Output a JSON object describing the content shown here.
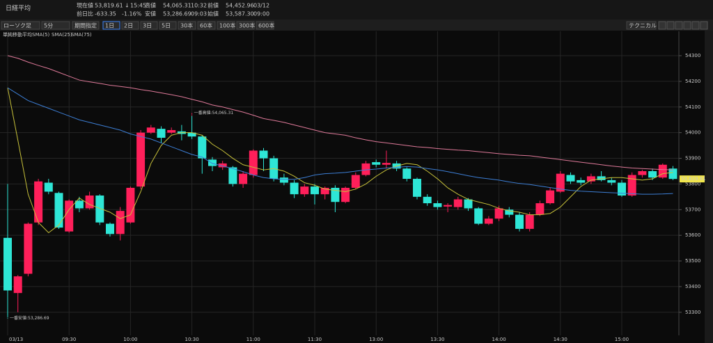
{
  "header": {
    "title": "日経平均",
    "quotes": [
      {
        "label": "現在値",
        "value": "53,819.61",
        "arrow": "↓",
        "time": "15:45"
      },
      {
        "label": "前日比",
        "value": "-633.35",
        "pct": "-1.16%"
      },
      {
        "label": "高値",
        "value": "54,065.31",
        "time": "10:32"
      },
      {
        "label": "安値",
        "value": "53,286.69",
        "time": "09:03"
      },
      {
        "label": "前値",
        "value": "54,452.96",
        "time": "03/12"
      },
      {
        "label": "始値",
        "value": "53,587.30",
        "time": "09:00"
      }
    ]
  },
  "toolbar": {
    "chart_style": "ローソク足",
    "interval": "5分",
    "range": "期間指定",
    "periods": [
      "1日",
      "2日",
      "3日",
      "5日",
      "30本",
      "60本",
      "100本",
      "300本",
      "600本"
    ],
    "technical": "テクニカル"
  },
  "chart_data": {
    "type": "candlestick",
    "legend_title": "単純移動平均",
    "up_color": "#ff1f5a",
    "down_color": "#2ee6d6",
    "categories": [
      "03/13",
      null,
      null,
      null,
      null,
      null,
      "09:30",
      null,
      null,
      null,
      null,
      null,
      "10:00",
      null,
      null,
      null,
      null,
      null,
      "10:30",
      null,
      null,
      null,
      null,
      null,
      "11:00",
      null,
      null,
      null,
      null,
      null,
      "11:30",
      null,
      null,
      null,
      null,
      null,
      "13:00",
      null,
      null,
      null,
      null,
      null,
      "13:30",
      null,
      null,
      null,
      null,
      null,
      "14:00",
      null,
      null,
      null,
      null,
      null,
      "14:30",
      null,
      null,
      null,
      null,
      null,
      "15:00",
      null,
      null,
      null,
      null,
      null
    ],
    "open": [
      53590,
      53375,
      53450,
      53650,
      53805,
      53765,
      53615,
      53735,
      53705,
      53755,
      53645,
      53605,
      53650,
      53790,
      54000,
      54015,
      54000,
      54005,
      54000,
      53985,
      53895,
      53865,
      53865,
      53800,
      53835,
      53930,
      53900,
      53825,
      53805,
      53760,
      53790,
      53760,
      53785,
      53730,
      53785,
      53835,
      53885,
      53875,
      53880,
      53860,
      53820,
      53750,
      53725,
      53712,
      53710,
      53740,
      53705,
      53645,
      53665,
      53700,
      53680,
      53625,
      53680,
      53725,
      53770,
      53835,
      53815,
      53810,
      53830,
      53815,
      53805,
      53755,
      53835,
      53850,
      53825,
      53860
    ],
    "high": [
      53800,
      53445,
      53650,
      53820,
      53820,
      53770,
      53740,
      53750,
      53770,
      53760,
      53650,
      53710,
      53790,
      54010,
      54030,
      54025,
      54020,
      54030,
      54065.31,
      53990,
      53905,
      53890,
      53870,
      53850,
      53935,
      53940,
      53910,
      53840,
      53815,
      53800,
      53800,
      53790,
      53795,
      53790,
      53845,
      53890,
      53895,
      53930,
      53890,
      53865,
      53825,
      53760,
      53735,
      53725,
      53750,
      53745,
      53710,
      53675,
      53715,
      53710,
      53690,
      53690,
      53735,
      53785,
      53850,
      53845,
      53825,
      53840,
      53850,
      53825,
      53815,
      53845,
      53855,
      53860,
      53880,
      53870
    ],
    "low": [
      53286.69,
      53300,
      53440,
      53640,
      53760,
      53625,
      53610,
      53690,
      53700,
      53640,
      53595,
      53580,
      53645,
      53780,
      53995,
      53960,
      53995,
      53970,
      53975,
      53840,
      53850,
      53855,
      53790,
      53785,
      53825,
      53850,
      53810,
      53795,
      53745,
      53750,
      53720,
      53740,
      53690,
      53725,
      53780,
      53830,
      53865,
      53860,
      53850,
      53810,
      53740,
      53715,
      53700,
      53690,
      53700,
      53695,
      53640,
      53640,
      53655,
      53670,
      53615,
      53615,
      53675,
      53720,
      53765,
      53800,
      53795,
      53800,
      53810,
      53795,
      53750,
      53750,
      53825,
      53815,
      53820,
      53815
    ],
    "close": [
      53385,
      53440,
      53645,
      53810,
      53770,
      53630,
      53735,
      53705,
      53755,
      53650,
      53605,
      53695,
      53785,
      54000,
      54020,
      53980,
      54010,
      53995,
      53985,
      53900,
      53870,
      53880,
      53800,
      53840,
      53930,
      53900,
      53820,
      53805,
      53760,
      53790,
      53760,
      53785,
      53730,
      53785,
      53835,
      53880,
      53875,
      53882,
      53860,
      53820,
      53750,
      53725,
      53710,
      53718,
      53740,
      53705,
      53645,
      53665,
      53705,
      53680,
      53625,
      53680,
      53725,
      53775,
      53840,
      53810,
      53805,
      53830,
      53815,
      53805,
      53755,
      53835,
      53850,
      53825,
      53875,
      53819.61
    ],
    "series": [
      {
        "name": "SMA(5)",
        "color": "#c8c23a",
        "values": [
          54175,
          53970,
          53760,
          53650,
          53610,
          53640,
          53700,
          53745,
          53720,
          53705,
          53690,
          53665,
          53680,
          53770,
          53880,
          53950,
          53990,
          54000,
          54000,
          53990,
          53955,
          53930,
          53900,
          53875,
          53865,
          53855,
          53860,
          53850,
          53830,
          53805,
          53795,
          53780,
          53775,
          53770,
          53780,
          53800,
          53830,
          53855,
          53870,
          53880,
          53875,
          53850,
          53820,
          53785,
          53760,
          53740,
          53730,
          53720,
          53705,
          53695,
          53690,
          53680,
          53680,
          53685,
          53710,
          53750,
          53790,
          53815,
          53820,
          53825,
          53825,
          53820,
          53815,
          53820,
          53840,
          53845
        ]
      },
      {
        "name": "SMA(25)",
        "color": "#3d7fd6",
        "values": [
          54175,
          54150,
          54125,
          54110,
          54095,
          54080,
          54065,
          54050,
          54040,
          54030,
          54020,
          54010,
          53995,
          53985,
          53975,
          53960,
          53945,
          53930,
          53915,
          53905,
          53880,
          53870,
          53860,
          53848,
          53835,
          53825,
          53820,
          53818,
          53818,
          53825,
          53835,
          53840,
          53842,
          53845,
          53850,
          53855,
          53858,
          53862,
          53865,
          53868,
          53866,
          53860,
          53855,
          53848,
          53840,
          53832,
          53825,
          53820,
          53815,
          53808,
          53802,
          53798,
          53792,
          53786,
          53780,
          53775,
          53772,
          53770,
          53768,
          53766,
          53764,
          53762,
          53760,
          53760,
          53761,
          53763
        ]
      },
      {
        "name": "SMA(75)",
        "color": "#e07a9a",
        "values": [
          54300,
          54290,
          54275,
          54262,
          54250,
          54235,
          54220,
          54205,
          54198,
          54192,
          54185,
          54180,
          54175,
          54168,
          54162,
          54155,
          54148,
          54140,
          54130,
          54120,
          54108,
          54100,
          54090,
          54080,
          54068,
          54055,
          54048,
          54040,
          54030,
          54020,
          54010,
          54000,
          53995,
          53990,
          53980,
          53972,
          53965,
          53960,
          53955,
          53950,
          53945,
          53942,
          53938,
          53935,
          53932,
          53930,
          53926,
          53922,
          53918,
          53915,
          53912,
          53910,
          53905,
          53900,
          53895,
          53890,
          53885,
          53880,
          53875,
          53870,
          53866,
          53862,
          53860,
          53858,
          53856,
          53855
        ]
      }
    ],
    "ylim": [
      53210,
      54395
    ],
    "yticks": [
      53300,
      53400,
      53500,
      53600,
      53700,
      53800,
      53900,
      54000,
      54100,
      54200,
      54300
    ],
    "grid": true,
    "last_price": {
      "value": 53819.61,
      "label": "53,819.61"
    },
    "annotations": {
      "high_label": "一番高値:54,065.31",
      "low_label": "一番安値:53,286.69"
    }
  }
}
